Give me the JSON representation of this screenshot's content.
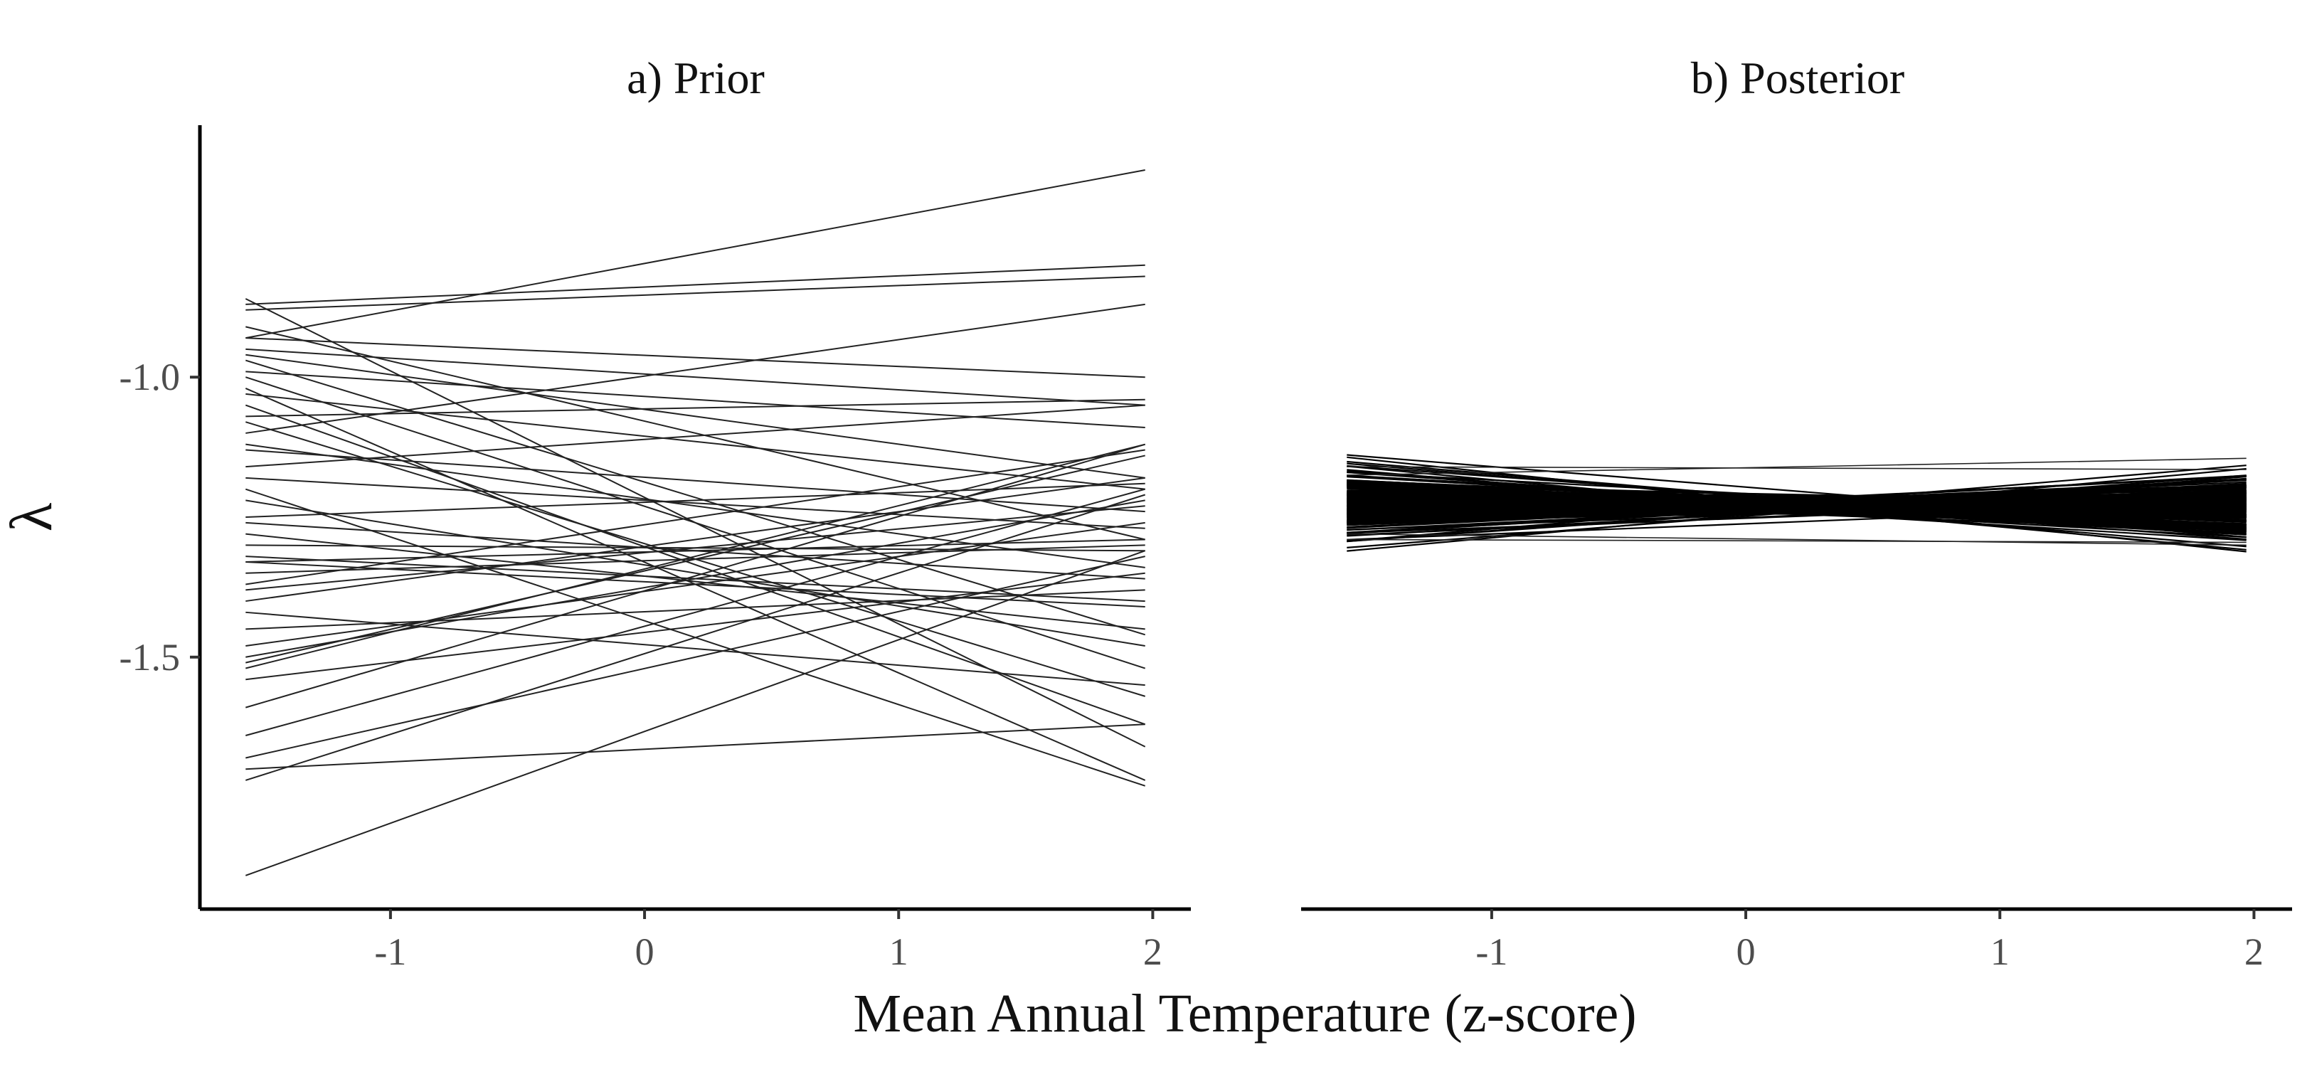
{
  "chart_data": [
    {
      "type": "line",
      "title": "a) Prior",
      "xlabel": "Mean Annual Temperature (z-score)",
      "ylabel": "λ",
      "xlim": [
        -1.75,
        2.15
      ],
      "ylim": [
        -1.95,
        -0.55
      ],
      "xticks": [
        -1,
        0,
        1,
        2
      ],
      "yticks": [
        -1.0,
        -1.5
      ],
      "ytick_labels": [
        "-1.0",
        "-1.5"
      ],
      "x_range": [
        -1.57,
        1.97
      ],
      "grid": false,
      "lines": [
        [
          -1.89,
          -1.31
        ],
        [
          -1.7,
          -1.62
        ],
        [
          -1.72,
          -1.21
        ],
        [
          -1.68,
          -1.32
        ],
        [
          -1.64,
          -1.2
        ],
        [
          -1.59,
          -1.12
        ],
        [
          -1.52,
          -1.12
        ],
        [
          -1.51,
          -1.14
        ],
        [
          -1.5,
          -1.22
        ],
        [
          -1.48,
          -1.26
        ],
        [
          -1.4,
          -1.18
        ],
        [
          -1.38,
          -1.23
        ],
        [
          -1.35,
          -1.3
        ],
        [
          -1.33,
          -1.29
        ],
        [
          -1.32,
          -1.4
        ],
        [
          -1.3,
          -1.31
        ],
        [
          -1.28,
          -1.45
        ],
        [
          -1.25,
          -1.19
        ],
        [
          -1.22,
          -1.48
        ],
        [
          -1.18,
          -1.27
        ],
        [
          -1.16,
          -1.05
        ],
        [
          -1.12,
          -1.34
        ],
        [
          -1.1,
          -0.87
        ],
        [
          -1.07,
          -1.04
        ],
        [
          -1.05,
          -1.62
        ],
        [
          -1.03,
          -1.2
        ],
        [
          -1.0,
          -1.52
        ],
        [
          -0.99,
          -1.09
        ],
        [
          -0.97,
          -1.46
        ],
        [
          -0.96,
          -1.18
        ],
        [
          -0.95,
          -1.05
        ],
        [
          -0.93,
          -1.0
        ],
        [
          -0.91,
          -1.29
        ],
        [
          -0.88,
          -0.82
        ],
        [
          -0.87,
          -0.8
        ],
        [
          -0.86,
          -1.66
        ],
        [
          -0.93,
          -0.63
        ],
        [
          -1.02,
          -1.72
        ],
        [
          -1.2,
          -1.73
        ],
        [
          -1.37,
          -1.13
        ],
        [
          -1.42,
          -1.55
        ],
        [
          -1.33,
          -1.41
        ],
        [
          -1.26,
          -1.36
        ],
        [
          -1.13,
          -1.24
        ],
        [
          -1.45,
          -1.38
        ],
        [
          -1.08,
          -1.57
        ],
        [
          -1.54,
          -1.35
        ]
      ]
    },
    {
      "type": "line",
      "title": "b) Posterior",
      "xlabel": "Mean Annual Temperature (z-score)",
      "xlim": [
        -1.75,
        2.15
      ],
      "ylim": [
        -1.95,
        -0.55
      ],
      "xticks": [
        -1,
        0,
        1,
        2
      ],
      "x_range": [
        -1.57,
        1.97
      ],
      "grid": false,
      "band": {
        "center_left": -1.225,
        "center_right": -1.232,
        "half_width_left": 0.055,
        "half_width_right": 0.07,
        "pivot_x": 0.28,
        "pivot_half_width": 0.018,
        "n_lines": 200
      },
      "extreme_lines": [
        [
          -1.175,
          -1.145
        ],
        [
          -1.29,
          -1.295
        ],
        [
          -1.16,
          -1.165
        ],
        [
          -1.28,
          -1.3
        ]
      ]
    }
  ]
}
